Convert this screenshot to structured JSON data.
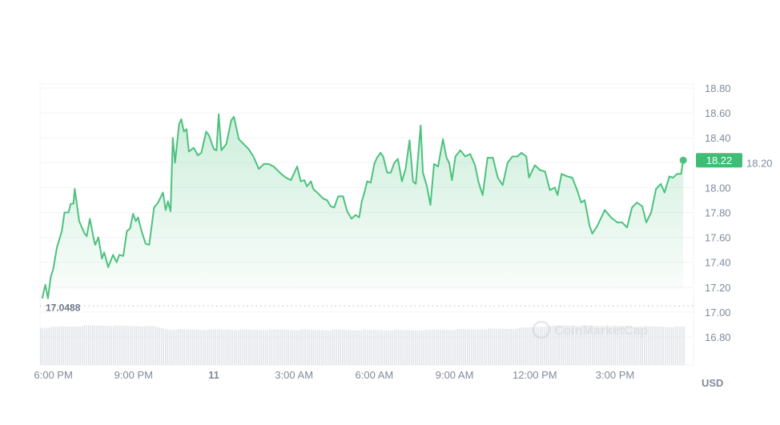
{
  "chart_data": {
    "type": "area",
    "title": "",
    "xlabel": "",
    "ylabel": "",
    "currency_label": "USD",
    "ylim": [
      16.6,
      18.85
    ],
    "y_ticks": [
      "18.80",
      "18.60",
      "18.40",
      "18.20",
      "18.00",
      "17.80",
      "17.60",
      "17.40",
      "17.20",
      "17.00",
      "16.80"
    ],
    "x_ticks": [
      {
        "label": "6:00 PM",
        "time": "18:00",
        "day": 10
      },
      {
        "label": "9:00 PM",
        "time": "21:00",
        "day": 10
      },
      {
        "label": "11",
        "time": "00:00",
        "day": 11
      },
      {
        "label": "3:00 AM",
        "time": "03:00",
        "day": 11
      },
      {
        "label": "6:00 AM",
        "time": "06:00",
        "day": 11
      },
      {
        "label": "9:00 AM",
        "time": "09:00",
        "day": 11
      },
      {
        "label": "12:00 PM",
        "time": "12:00",
        "day": 11
      },
      {
        "label": "3:00 PM",
        "time": "15:00",
        "day": 11
      }
    ],
    "grid": true,
    "reference_line": {
      "label": "17.0488",
      "value": 17.0488,
      "style": "dotted"
    },
    "current_price": {
      "label": "18.22",
      "value": 18.22
    },
    "watermark": "CoinMarketCap",
    "colors": {
      "line": "#4cc27e",
      "badge": "#3fbd77",
      "volume": "#e2e4e9",
      "text": "#808a9d"
    },
    "points": [
      [
        "17:35",
        17.11
      ],
      [
        "17:42",
        17.22
      ],
      [
        "17:48",
        17.11
      ],
      [
        "17:54",
        17.28
      ],
      [
        "18:00",
        17.35
      ],
      [
        "18:08",
        17.52
      ],
      [
        "18:19",
        17.65
      ],
      [
        "18:25",
        17.8
      ],
      [
        "18:34",
        17.8
      ],
      [
        "18:39",
        17.87
      ],
      [
        "18:45",
        17.87
      ],
      [
        "18:48",
        17.99
      ],
      [
        "18:53",
        17.86
      ],
      [
        "18:58",
        17.73
      ],
      [
        "19:10",
        17.63
      ],
      [
        "19:15",
        17.61
      ],
      [
        "19:22",
        17.75
      ],
      [
        "19:30",
        17.6
      ],
      [
        "19:34",
        17.54
      ],
      [
        "19:41",
        17.6
      ],
      [
        "19:49",
        17.43
      ],
      [
        "19:54",
        17.48
      ],
      [
        "20:03",
        17.36
      ],
      [
        "20:14",
        17.46
      ],
      [
        "20:22",
        17.4
      ],
      [
        "20:28",
        17.46
      ],
      [
        "20:37",
        17.45
      ],
      [
        "20:45",
        17.65
      ],
      [
        "20:52",
        17.67
      ],
      [
        "20:59",
        17.79
      ],
      [
        "21:05",
        17.73
      ],
      [
        "21:10",
        17.76
      ],
      [
        "21:18",
        17.65
      ],
      [
        "21:27",
        17.55
      ],
      [
        "21:35",
        17.54
      ],
      [
        "21:46",
        17.84
      ],
      [
        "21:55",
        17.88
      ],
      [
        "22:06",
        17.96
      ],
      [
        "22:12",
        17.82
      ],
      [
        "22:17",
        17.89
      ],
      [
        "22:23",
        17.81
      ],
      [
        "22:28",
        18.4
      ],
      [
        "22:33",
        18.2
      ],
      [
        "22:42",
        18.51
      ],
      [
        "22:47",
        18.55
      ],
      [
        "22:53",
        18.45
      ],
      [
        "22:59",
        18.47
      ],
      [
        "23:04",
        18.29
      ],
      [
        "23:15",
        18.32
      ],
      [
        "23:24",
        18.26
      ],
      [
        "23:32",
        18.28
      ],
      [
        "23:43",
        18.45
      ],
      [
        "23:49",
        18.42
      ],
      [
        "00:00",
        18.31
      ],
      [
        "00:06",
        18.3
      ],
      [
        "00:11",
        18.59
      ],
      [
        "00:17",
        18.3
      ],
      [
        "00:28",
        18.35
      ],
      [
        "00:39",
        18.54
      ],
      [
        "00:45",
        18.57
      ],
      [
        "00:56",
        18.39
      ],
      [
        "01:18",
        18.31
      ],
      [
        "01:29",
        18.25
      ],
      [
        "01:41",
        18.15
      ],
      [
        "01:52",
        18.19
      ],
      [
        "02:03",
        18.19
      ],
      [
        "02:14",
        18.17
      ],
      [
        "02:31",
        18.11
      ],
      [
        "02:42",
        18.08
      ],
      [
        "02:53",
        18.06
      ],
      [
        "03:07",
        18.17
      ],
      [
        "03:15",
        18.05
      ],
      [
        "03:23",
        18.06
      ],
      [
        "03:29",
        18.01
      ],
      [
        "03:38",
        18.05
      ],
      [
        "03:43",
        17.99
      ],
      [
        "03:55",
        17.95
      ],
      [
        "04:06",
        17.91
      ],
      [
        "04:14",
        17.9
      ],
      [
        "04:22",
        17.85
      ],
      [
        "04:30",
        17.84
      ],
      [
        "04:39",
        17.93
      ],
      [
        "04:50",
        17.93
      ],
      [
        "04:59",
        17.81
      ],
      [
        "05:09",
        17.75
      ],
      [
        "05:18",
        17.78
      ],
      [
        "05:26",
        17.76
      ],
      [
        "05:32",
        17.89
      ],
      [
        "05:37",
        17.95
      ],
      [
        "05:44",
        18.05
      ],
      [
        "05:52",
        18.04
      ],
      [
        "06:00",
        18.19
      ],
      [
        "06:06",
        18.24
      ],
      [
        "06:14",
        18.28
      ],
      [
        "06:20",
        18.25
      ],
      [
        "06:29",
        18.12
      ],
      [
        "06:37",
        18.12
      ],
      [
        "06:45",
        18.2
      ],
      [
        "06:53",
        18.23
      ],
      [
        "07:02",
        18.05
      ],
      [
        "07:10",
        18.15
      ],
      [
        "07:19",
        18.38
      ],
      [
        "07:27",
        18.05
      ],
      [
        "07:33",
        18.03
      ],
      [
        "07:44",
        18.5
      ],
      [
        "07:49",
        18.12
      ],
      [
        "07:58",
        18.01
      ],
      [
        "08:06",
        17.86
      ],
      [
        "08:14",
        18.19
      ],
      [
        "08:23",
        18.17
      ],
      [
        "08:34",
        18.39
      ],
      [
        "08:42",
        18.24
      ],
      [
        "08:48",
        18.2
      ],
      [
        "08:54",
        18.06
      ],
      [
        "09:02",
        18.25
      ],
      [
        "09:13",
        18.3
      ],
      [
        "09:24",
        18.25
      ],
      [
        "09:35",
        18.27
      ],
      [
        "09:46",
        18.18
      ],
      [
        "09:54",
        18.04
      ],
      [
        "10:03",
        17.94
      ],
      [
        "10:14",
        18.24
      ],
      [
        "10:26",
        18.24
      ],
      [
        "10:37",
        18.08
      ],
      [
        "10:48",
        18.02
      ],
      [
        "10:59",
        18.2
      ],
      [
        "11:10",
        18.25
      ],
      [
        "11:21",
        18.25
      ],
      [
        "11:30",
        18.28
      ],
      [
        "11:41",
        18.25
      ],
      [
        "11:47",
        18.08
      ],
      [
        "12:00",
        18.18
      ],
      [
        "12:12",
        18.14
      ],
      [
        "12:23",
        18.13
      ],
      [
        "12:34",
        17.98
      ],
      [
        "12:45",
        18.0
      ],
      [
        "12:51",
        17.94
      ],
      [
        "13:00",
        18.11
      ],
      [
        "13:13",
        18.09
      ],
      [
        "13:24",
        18.08
      ],
      [
        "13:35",
        17.98
      ],
      [
        "13:44",
        17.88
      ],
      [
        "13:52",
        17.9
      ],
      [
        "14:03",
        17.69
      ],
      [
        "14:09",
        17.63
      ],
      [
        "14:20",
        17.69
      ],
      [
        "14:37",
        17.82
      ],
      [
        "14:51",
        17.76
      ],
      [
        "15:05",
        17.72
      ],
      [
        "15:16",
        17.72
      ],
      [
        "15:27",
        17.68
      ],
      [
        "15:38",
        17.84
      ],
      [
        "15:49",
        17.88
      ],
      [
        "16:01",
        17.85
      ],
      [
        "16:10",
        17.72
      ],
      [
        "16:21",
        17.8
      ],
      [
        "16:32",
        17.99
      ],
      [
        "16:43",
        18.03
      ],
      [
        "16:51",
        17.96
      ],
      [
        "17:02",
        18.09
      ],
      [
        "17:10",
        18.08
      ],
      [
        "17:19",
        18.11
      ],
      [
        "17:28",
        18.11
      ],
      [
        "17:33",
        18.22
      ]
    ]
  }
}
